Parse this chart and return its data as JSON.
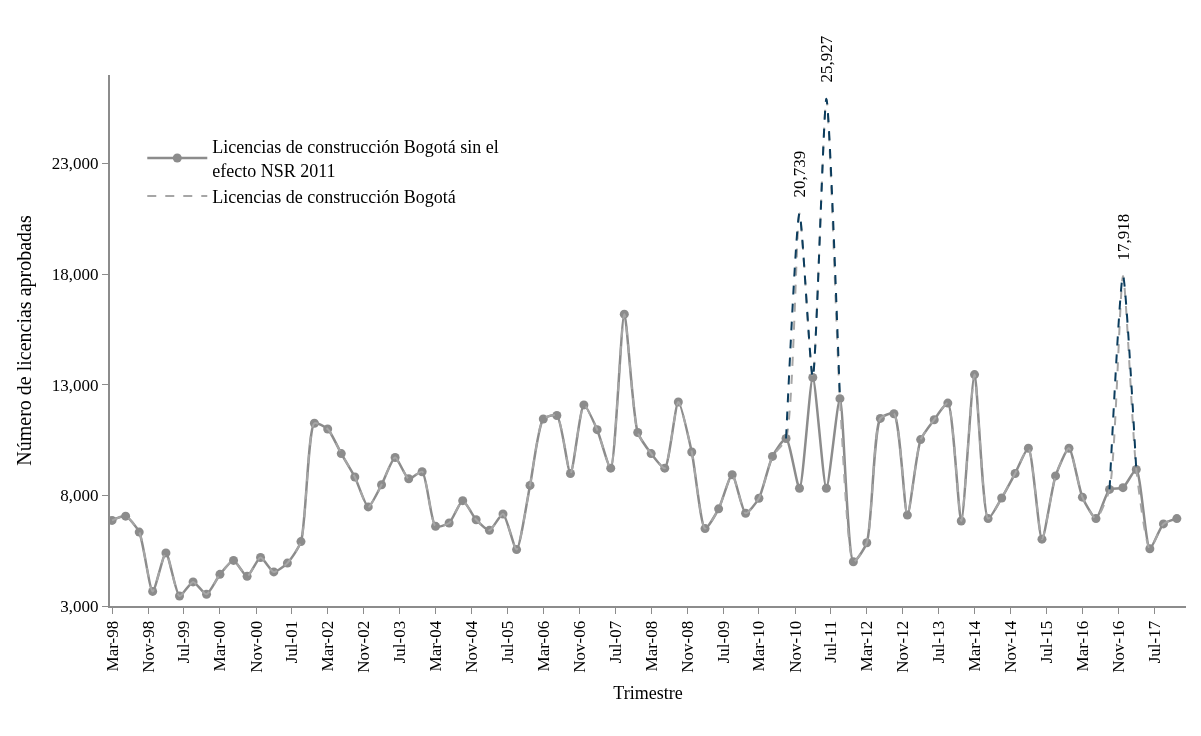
{
  "chart_data": {
    "type": "line",
    "xlabel": "Trimestre",
    "ylabel": "Número de licencias aprobadas",
    "x": [
      "1998-03",
      "1998-06",
      "1998-09",
      "1998-12",
      "1999-03",
      "1999-06",
      "1999-09",
      "1999-12",
      "2000-03",
      "2000-06",
      "2000-09",
      "2000-12",
      "2001-03",
      "2001-06",
      "2001-09",
      "2001-12",
      "2002-03",
      "2002-06",
      "2002-09",
      "2002-12",
      "2003-03",
      "2003-06",
      "2003-09",
      "2003-12",
      "2004-03",
      "2004-06",
      "2004-09",
      "2004-12",
      "2005-03",
      "2005-06",
      "2005-09",
      "2005-12",
      "2006-03",
      "2006-06",
      "2006-09",
      "2006-12",
      "2007-03",
      "2007-06",
      "2007-09",
      "2007-12",
      "2008-03",
      "2008-06",
      "2008-09",
      "2008-12",
      "2009-03",
      "2009-06",
      "2009-09",
      "2009-12",
      "2010-03",
      "2010-06",
      "2010-09",
      "2010-12",
      "2011-03",
      "2011-06",
      "2011-09",
      "2011-12",
      "2012-03",
      "2012-06",
      "2012-09",
      "2012-12",
      "2013-03",
      "2013-06",
      "2013-09",
      "2013-12",
      "2014-03",
      "2014-06",
      "2014-09",
      "2014-12",
      "2015-03",
      "2015-06",
      "2015-09",
      "2015-12",
      "2016-03",
      "2016-06",
      "2016-09",
      "2016-12",
      "2017-03",
      "2017-06",
      "2017-09",
      "2017-12"
    ],
    "series": [
      {
        "name": "Licencias de construcción Bogotá sin el efecto NSR 2011",
        "color": "#8c8c8c",
        "marker": "circle",
        "line_style": "solid",
        "values": [
          6870,
          7060,
          6340,
          3660,
          5400,
          3450,
          4090,
          3530,
          4430,
          5060,
          4340,
          5190,
          4540,
          4940,
          5910,
          11260,
          11000,
          9890,
          8830,
          7480,
          8480,
          9710,
          8750,
          9070,
          6600,
          6750,
          7760,
          6900,
          6420,
          7160,
          5550,
          8450,
          11450,
          11610,
          8990,
          12090,
          10970,
          9230,
          16190,
          10840,
          9890,
          9230,
          12220,
          9960,
          6500,
          7390,
          8930,
          7190,
          7870,
          9760,
          10570,
          8320,
          13330,
          8320,
          12370,
          5000,
          5860,
          11480,
          11690,
          7110,
          10520,
          11420,
          12170,
          6840,
          13460,
          6950,
          7880,
          8990,
          10130,
          6020,
          8880,
          10130,
          7920,
          6950,
          8270,
          8350,
          9170,
          5590,
          6710,
          6950
        ]
      },
      {
        "name": "Licencias de construcción Bogotá",
        "color": "#a6a6a6",
        "marker": "none",
        "line_style": "dashed",
        "values": [
          6870,
          7060,
          6340,
          3660,
          5400,
          3450,
          4090,
          3530,
          4430,
          5060,
          4340,
          5190,
          4540,
          4940,
          5910,
          11260,
          11000,
          9890,
          8830,
          7480,
          8480,
          9710,
          8750,
          9070,
          6600,
          6750,
          7760,
          6900,
          6420,
          7160,
          5550,
          8450,
          11450,
          11610,
          8990,
          12090,
          10970,
          9230,
          16190,
          10840,
          9890,
          9230,
          12220,
          9960,
          6500,
          7390,
          8930,
          7190,
          7870,
          9760,
          10570,
          20739,
          13330,
          25927,
          12370,
          5000,
          5860,
          11480,
          11690,
          7110,
          10520,
          11420,
          12170,
          6840,
          13460,
          6950,
          7880,
          8990,
          10130,
          6020,
          8880,
          10130,
          7920,
          6950,
          8270,
          17918,
          9170,
          5590,
          6710,
          6950
        ]
      },
      {
        "color": "#0b3c5d",
        "marker": "none",
        "line_style": "dashed",
        "values": [
          null,
          null,
          null,
          null,
          null,
          null,
          null,
          null,
          null,
          null,
          null,
          null,
          null,
          null,
          null,
          null,
          null,
          null,
          null,
          null,
          null,
          null,
          null,
          null,
          null,
          null,
          null,
          null,
          null,
          null,
          null,
          null,
          null,
          null,
          null,
          null,
          null,
          null,
          null,
          null,
          null,
          null,
          null,
          null,
          null,
          null,
          null,
          null,
          null,
          null,
          10570,
          20739,
          13330,
          25927,
          12370,
          null,
          null,
          null,
          null,
          null,
          null,
          null,
          null,
          null,
          null,
          null,
          null,
          null,
          null,
          null,
          null,
          null,
          null,
          null,
          8270,
          17918,
          9170,
          null,
          null,
          null
        ],
        "value_labels": [
          null,
          null,
          null,
          null,
          null,
          null,
          null,
          null,
          null,
          null,
          null,
          null,
          null,
          null,
          null,
          null,
          null,
          null,
          null,
          null,
          null,
          null,
          null,
          null,
          null,
          null,
          null,
          null,
          null,
          null,
          null,
          null,
          null,
          null,
          null,
          null,
          null,
          null,
          null,
          null,
          null,
          null,
          null,
          null,
          null,
          null,
          null,
          null,
          null,
          null,
          null,
          "20,739",
          null,
          "25,927",
          null,
          null,
          null,
          null,
          null,
          null,
          null,
          null,
          null,
          null,
          null,
          null,
          null,
          null,
          null,
          null,
          null,
          null,
          null,
          null,
          null,
          "17,918",
          null,
          null,
          null,
          null
        ]
      }
    ],
    "ylim": [
      3000,
      27000
    ],
    "yticks": [
      {
        "value": 3000,
        "label": "3,000"
      },
      {
        "value": 8000,
        "label": "8,000"
      },
      {
        "value": 13000,
        "label": "13,000"
      },
      {
        "value": 18000,
        "label": "18,000"
      },
      {
        "value": 23000,
        "label": "23,000"
      }
    ],
    "xlim": [
      "1998-02-15",
      "2018-02-01"
    ],
    "xticks": [
      {
        "value": "1998-03",
        "label": "Mar-98"
      },
      {
        "value": "1998-11",
        "label": "Nov-98"
      },
      {
        "value": "1999-07",
        "label": "Jul-99"
      },
      {
        "value": "2000-03",
        "label": "Mar-00"
      },
      {
        "value": "2000-11",
        "label": "Nov-00"
      },
      {
        "value": "2001-07",
        "label": "Jul-01"
      },
      {
        "value": "2002-03",
        "label": "Mar-02"
      },
      {
        "value": "2002-11",
        "label": "Nov-02"
      },
      {
        "value": "2003-07",
        "label": "Jul-03"
      },
      {
        "value": "2004-03",
        "label": "Mar-04"
      },
      {
        "value": "2004-11",
        "label": "Nov-04"
      },
      {
        "value": "2005-07",
        "label": "Jul-05"
      },
      {
        "value": "2006-03",
        "label": "Mar-06"
      },
      {
        "value": "2006-11",
        "label": "Nov-06"
      },
      {
        "value": "2007-07",
        "label": "Jul-07"
      },
      {
        "value": "2008-03",
        "label": "Mar-08"
      },
      {
        "value": "2008-11",
        "label": "Nov-08"
      },
      {
        "value": "2009-07",
        "label": "Jul-09"
      },
      {
        "value": "2010-03",
        "label": "Mar-10"
      },
      {
        "value": "2010-11",
        "label": "Nov-10"
      },
      {
        "value": "2011-07",
        "label": "Jul-11"
      },
      {
        "value": "2012-03",
        "label": "Mar-12"
      },
      {
        "value": "2012-11",
        "label": "Nov-12"
      },
      {
        "value": "2013-07",
        "label": "Jul-13"
      },
      {
        "value": "2014-03",
        "label": "Mar-14"
      },
      {
        "value": "2014-11",
        "label": "Nov-14"
      },
      {
        "value": "2015-07",
        "label": "Jul-15"
      },
      {
        "value": "2016-03",
        "label": "Mar-16"
      },
      {
        "value": "2016-11",
        "label": "Nov-16"
      },
      {
        "value": "2017-07",
        "label": "Jul-17"
      }
    ],
    "grid": false,
    "legend": "top left"
  }
}
